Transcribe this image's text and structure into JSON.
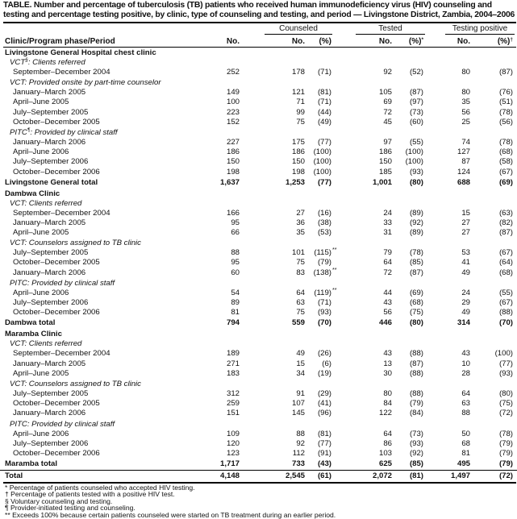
{
  "title": "TABLE. Number and percentage of tuberculosis (TB) patients who received human immunodeficiency virus (HIV) counseling and testing and percentage testing positive, by clinic, type of counseling and testing, and period — Livingstone District, Zambia, 2004–2006",
  "groups": {
    "counseled": "Counseled",
    "tested": "Tested",
    "positive": "Testing positive"
  },
  "columns": {
    "label": "Clinic/Program phase/Period",
    "no": "No.",
    "c_no": "No.",
    "c_pct": "(%)",
    "t_no": "No.",
    "t_pct": "(%)",
    "t_pct_mark": "*",
    "p_no": "No.",
    "p_pct": "(%)",
    "p_pct_mark": "†"
  },
  "rows": [
    {
      "type": "section",
      "label": "Livingstone General Hospital chest clinic"
    },
    {
      "type": "sub",
      "label": "VCT",
      "mark": "§",
      "rest": ": Clients referred"
    },
    {
      "type": "data",
      "label": "September–December 2004",
      "v": [
        "252",
        "178",
        "(71)",
        "92",
        "(52)",
        "80",
        "(87)"
      ]
    },
    {
      "type": "sub",
      "label": "VCT: Provided onsite by part-time counselor"
    },
    {
      "type": "data",
      "label": "January–March 2005",
      "v": [
        "149",
        "121",
        "(81)",
        "105",
        "(87)",
        "80",
        "(76)"
      ]
    },
    {
      "type": "data",
      "label": "April–June 2005",
      "v": [
        "100",
        "71",
        "(71)",
        "69",
        "(97)",
        "35",
        "(51)"
      ]
    },
    {
      "type": "data",
      "label": "July–September 2005",
      "v": [
        "223",
        "99",
        "(44)",
        "72",
        "(73)",
        "56",
        "(78)"
      ]
    },
    {
      "type": "data",
      "label": "October–December 2005",
      "v": [
        "152",
        "75",
        "(49)",
        "45",
        "(60)",
        "25",
        "(56)"
      ]
    },
    {
      "type": "sub",
      "label": "PITC",
      "mark": "¶",
      "rest": ": Provided by clinical staff"
    },
    {
      "type": "data",
      "label": "January–March 2006",
      "v": [
        "227",
        "175",
        "(77)",
        "97",
        "(55)",
        "74",
        "(78)"
      ]
    },
    {
      "type": "data",
      "label": "April–June 2006",
      "v": [
        "186",
        "186",
        "(100)",
        "186",
        "(100)",
        "127",
        "(68)"
      ]
    },
    {
      "type": "data",
      "label": "July–September 2006",
      "v": [
        "150",
        "150",
        "(100)",
        "150",
        "(100)",
        "87",
        "(58)"
      ]
    },
    {
      "type": "data",
      "label": "October–December 2006",
      "v": [
        "198",
        "198",
        "(100)",
        "185",
        "(93)",
        "124",
        "(67)"
      ]
    },
    {
      "type": "total",
      "label": "Livingstone General total",
      "v": [
        "1,637",
        "1,253",
        "(77)",
        "1,001",
        "(80)",
        "688",
        "(69)"
      ]
    },
    {
      "type": "section",
      "label": "Dambwa Clinic"
    },
    {
      "type": "sub",
      "label": "VCT: Clients referred"
    },
    {
      "type": "data",
      "label": "September–December 2004",
      "v": [
        "166",
        "27",
        "(16)",
        "24",
        "(89)",
        "15",
        "(63)"
      ]
    },
    {
      "type": "data",
      "label": "January–March 2005",
      "v": [
        "95",
        "36",
        "(38)",
        "33",
        "(92)",
        "27",
        "(82)"
      ]
    },
    {
      "type": "data",
      "label": "April–June 2005",
      "v": [
        "66",
        "35",
        "(53)",
        "31",
        "(89)",
        "27",
        "(87)"
      ]
    },
    {
      "type": "sub",
      "label": "VCT: Counselors assigned to TB clinic"
    },
    {
      "type": "data",
      "label": "July–September 2005",
      "v": [
        "88",
        "101",
        "(115)",
        "79",
        "(78)",
        "53",
        "(67)"
      ],
      "ast": "**"
    },
    {
      "type": "data",
      "label": "October–December 2005",
      "v": [
        "95",
        "75",
        "(79)",
        "64",
        "(85)",
        "41",
        "(64)"
      ]
    },
    {
      "type": "data",
      "label": "January–March 2006",
      "v": [
        "60",
        "83",
        "(138)",
        "72",
        "(87)",
        "49",
        "(68)"
      ],
      "ast": "**"
    },
    {
      "type": "sub",
      "label": "PITC: Provided by clinical staff"
    },
    {
      "type": "data",
      "label": "April–June 2006",
      "v": [
        "54",
        "64",
        "(119)",
        "44",
        "(69)",
        "24",
        "(55)"
      ],
      "ast": "**"
    },
    {
      "type": "data",
      "label": "July–September 2006",
      "v": [
        "89",
        "63",
        "(71)",
        "43",
        "(68)",
        "29",
        "(67)"
      ]
    },
    {
      "type": "data",
      "label": "October–December 2006",
      "v": [
        "81",
        "75",
        "(93)",
        "56",
        "(75)",
        "49",
        "(88)"
      ]
    },
    {
      "type": "total",
      "label": "Dambwa total",
      "v": [
        "794",
        "559",
        "(70)",
        "446",
        "(80)",
        "314",
        "(70)"
      ]
    },
    {
      "type": "section",
      "label": "Maramba Clinic"
    },
    {
      "type": "sub",
      "label": "VCT: Clients referred"
    },
    {
      "type": "data",
      "label": "September–December 2004",
      "v": [
        "189",
        "49",
        "(26)",
        "43",
        "(88)",
        "43",
        "(100)"
      ]
    },
    {
      "type": "data",
      "label": "January–March 2005",
      "v": [
        "271",
        "15",
        "(6)",
        "13",
        "(87)",
        "10",
        "(77)"
      ]
    },
    {
      "type": "data",
      "label": "April–June 2005",
      "v": [
        "183",
        "34",
        "(19)",
        "30",
        "(88)",
        "28",
        "(93)"
      ]
    },
    {
      "type": "sub",
      "label": "VCT: Counselors assigned to TB clinic"
    },
    {
      "type": "data",
      "label": "July–September 2005",
      "v": [
        "312",
        "91",
        "(29)",
        "80",
        "(88)",
        "64",
        "(80)"
      ]
    },
    {
      "type": "data",
      "label": "October–December 2005",
      "v": [
        "259",
        "107",
        "(41)",
        "84",
        "(79)",
        "63",
        "(75)"
      ]
    },
    {
      "type": "data",
      "label": "January–March 2006",
      "v": [
        "151",
        "145",
        "(96)",
        "122",
        "(84)",
        "88",
        "(72)"
      ]
    },
    {
      "type": "sub",
      "label": "PITC: Provided by clinical staff"
    },
    {
      "type": "data",
      "label": "April–June 2006",
      "v": [
        "109",
        "88",
        "(81)",
        "64",
        "(73)",
        "50",
        "(78)"
      ]
    },
    {
      "type": "data",
      "label": "July–September 2006",
      "v": [
        "120",
        "92",
        "(77)",
        "86",
        "(93)",
        "68",
        "(79)"
      ]
    },
    {
      "type": "data",
      "label": "October–December 2006",
      "v": [
        "123",
        "112",
        "(91)",
        "103",
        "(92)",
        "81",
        "(79)"
      ]
    },
    {
      "type": "total",
      "label": "Maramba total",
      "v": [
        "1,717",
        "733",
        "(43)",
        "625",
        "(85)",
        "495",
        "(79)"
      ]
    },
    {
      "type": "grand",
      "label": "Total",
      "v": [
        "4,148",
        "2,545",
        "(61)",
        "2,072",
        "(81)",
        "1,497",
        "(72)"
      ]
    }
  ],
  "footnotes": [
    "* Percentage of patients counseled who accepted HIV testing.",
    "† Percentage of patients tested with a positive HIV test.",
    "§ Voluntary counseling and testing.",
    "¶ Provider-initiated testing and counseling.",
    "** Exceeds 100% because certain patients counseled were started on TB treatment during an earlier period."
  ]
}
